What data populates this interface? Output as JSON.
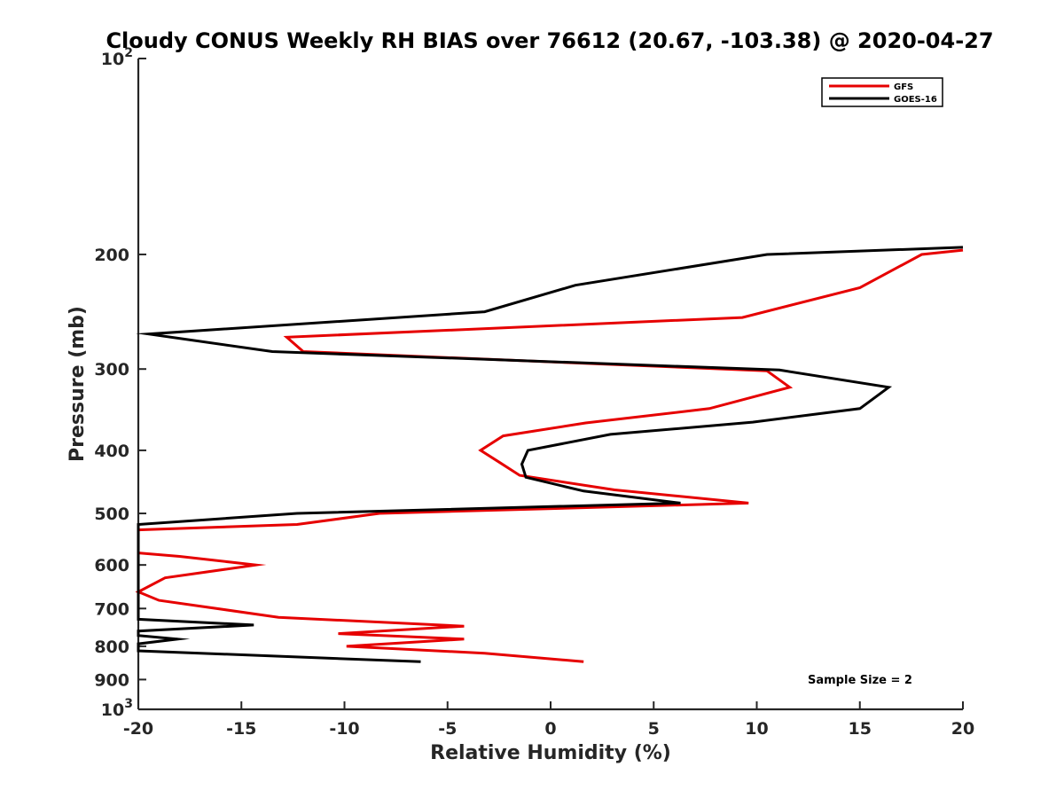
{
  "chart_data": {
    "type": "line",
    "title": "Cloudy CONUS Weekly RH BIAS over 76612 (20.67, -103.38) @ 2020-04-27",
    "xlabel": "Relative Humidity (%)",
    "ylabel": "Pressure (mb)",
    "xlim": [
      -20,
      20
    ],
    "ylim": [
      100,
      1000
    ],
    "y_scale": "log",
    "y_direction": "reversed",
    "x_ticks": [
      {
        "value": -20,
        "label": "-20"
      },
      {
        "value": -15,
        "label": "-15"
      },
      {
        "value": -10,
        "label": "-10"
      },
      {
        "value": -5,
        "label": "-5"
      },
      {
        "value": 0,
        "label": "0"
      },
      {
        "value": 5,
        "label": "5"
      },
      {
        "value": 10,
        "label": "10"
      },
      {
        "value": 15,
        "label": "15"
      },
      {
        "value": 20,
        "label": "20"
      }
    ],
    "y_ticks": [
      {
        "value": 100,
        "label": "10",
        "sup": "2"
      },
      {
        "value": 200,
        "label": "200"
      },
      {
        "value": 300,
        "label": "300"
      },
      {
        "value": 400,
        "label": "400"
      },
      {
        "value": 500,
        "label": "500"
      },
      {
        "value": 600,
        "label": "600"
      },
      {
        "value": 700,
        "label": "700"
      },
      {
        "value": 800,
        "label": "800"
      },
      {
        "value": 900,
        "label": "900"
      },
      {
        "value": 1000,
        "label": "10",
        "sup": "3"
      }
    ],
    "legend_position": "top-right",
    "annotation": "Sample Size = 2",
    "series": [
      {
        "name": "GFS",
        "color": "#e60000",
        "points": [
          [
            20,
            197
          ],
          [
            18,
            200
          ],
          [
            15,
            225
          ],
          [
            9.3,
            250
          ],
          [
            -12.8,
            268
          ],
          [
            -12,
            282
          ],
          [
            10.5,
            302
          ],
          [
            11.6,
            320
          ],
          [
            7.7,
            345
          ],
          [
            1.7,
            363
          ],
          [
            -2.3,
            380
          ],
          [
            -3.4,
            400
          ],
          [
            -2.5,
            417
          ],
          [
            -1.5,
            437
          ],
          [
            3.1,
            460
          ],
          [
            9.6,
            482
          ],
          [
            -8.3,
            500
          ],
          [
            -12.3,
            520
          ],
          [
            -20,
            530
          ],
          [
            -20,
            575
          ],
          [
            -18,
            582
          ],
          [
            -14.3,
            600
          ],
          [
            -18.7,
            628
          ],
          [
            -20,
            660
          ],
          [
            -19,
            680
          ],
          [
            -13.2,
            722
          ],
          [
            -4.2,
            745
          ],
          [
            -10.3,
            765
          ],
          [
            -4.2,
            780
          ],
          [
            -9.9,
            800
          ],
          [
            -3.2,
            820
          ],
          [
            1.6,
            845
          ]
        ]
      },
      {
        "name": "GOES-16",
        "color": "#000000",
        "points": [
          [
            20,
            195
          ],
          [
            10.5,
            200
          ],
          [
            1.2,
            223
          ],
          [
            -3.2,
            245
          ],
          [
            -19.5,
            265
          ],
          [
            -13.5,
            282
          ],
          [
            11.1,
            301
          ],
          [
            16.4,
            320
          ],
          [
            15,
            345
          ],
          [
            9.8,
            362
          ],
          [
            2.9,
            378
          ],
          [
            -1.1,
            400
          ],
          [
            -1.4,
            420
          ],
          [
            -1.2,
            440
          ],
          [
            1.6,
            462
          ],
          [
            6.3,
            482
          ],
          [
            -12.3,
            500
          ],
          [
            -20,
            520
          ],
          [
            -20,
            727
          ],
          [
            -14.4,
            742
          ],
          [
            -20,
            758
          ],
          [
            -20,
            770
          ],
          [
            -18.1,
            780
          ],
          [
            -20,
            793
          ],
          [
            -20,
            813
          ],
          [
            -6.3,
            845
          ]
        ]
      }
    ]
  }
}
